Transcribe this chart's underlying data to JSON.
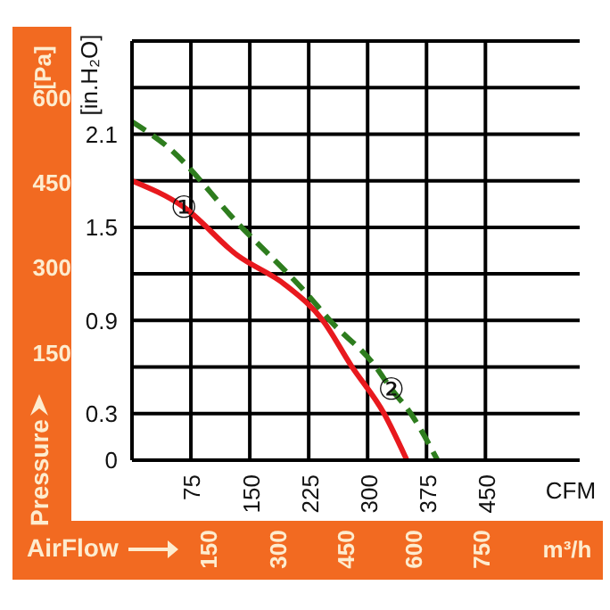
{
  "chart_data": {
    "type": "line",
    "xlabel": "CFM",
    "ylabel": "[in.H₂O]",
    "y2label": "[Pa]",
    "x2label": "m³/h",
    "annotations": [
      "Pressure",
      "AirFlow",
      {
        "text": "①",
        "x": 66,
        "y": 1.63
      },
      {
        "text": "②",
        "x": 330,
        "y": 0.46
      }
    ],
    "xlim": [
      0,
      570
    ],
    "xticks": [
      75,
      150,
      225,
      300,
      375,
      450
    ],
    "ylim": [
      0,
      2.7
    ],
    "yticks": [
      0,
      0.3,
      {
        "value": 0.6,
        "label": null
      },
      0.9,
      {
        "value": 1.2,
        "label": null
      },
      1.5,
      {
        "value": 1.8,
        "label": null
      },
      2.1,
      {
        "value": 2.4,
        "label": null
      },
      {
        "value": 2.7,
        "label": null
      }
    ],
    "y2lim": [
      -40,
      700
    ],
    "y2ticks": [
      150,
      300,
      450,
      600
    ],
    "x2lim": [
      -20,
      965
    ],
    "x2ticks": [
      150,
      300,
      450,
      600,
      750
    ],
    "grid": true,
    "series": [
      {
        "color": "#e8191e",
        "line_style": "solid",
        "x": [
          0,
          66,
          134,
          195,
          243,
          279,
          321,
          350
        ],
        "values": [
          1.8,
          1.63,
          1.32,
          1.13,
          0.9,
          0.61,
          0.3,
          0
        ]
      },
      {
        "color": "#2e7d1e",
        "line_style": "dashed",
        "x": [
          0,
          45,
          134,
          223,
          252,
          309,
          330,
          355,
          389
        ],
        "values": [
          2.18,
          2.02,
          1.53,
          1.07,
          0.9,
          0.61,
          0.46,
          0.3,
          0
        ]
      }
    ]
  }
}
